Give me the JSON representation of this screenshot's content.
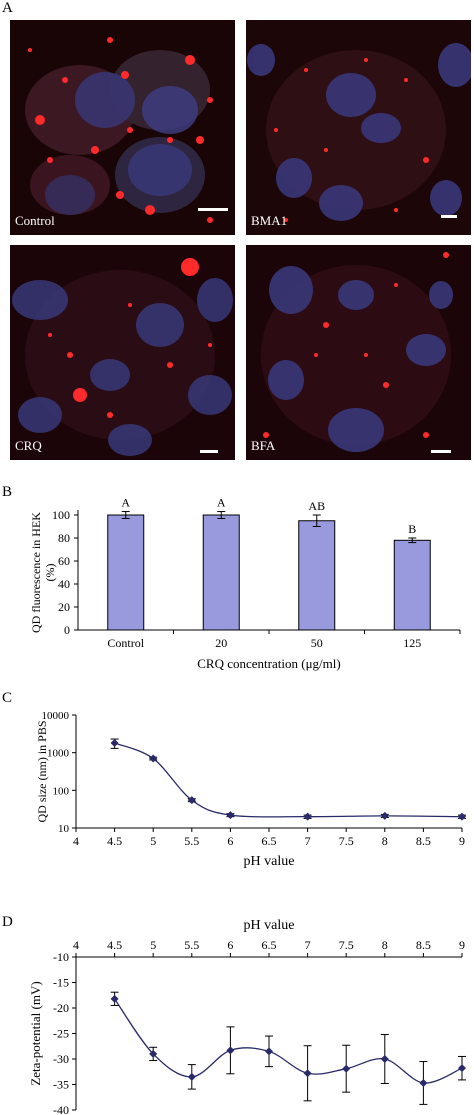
{
  "panels": {
    "a": "A",
    "b": "B",
    "c": "C",
    "d": "D"
  },
  "micrographs": [
    {
      "label": "Control"
    },
    {
      "label": "BMA1"
    },
    {
      "label": "CRQ"
    },
    {
      "label": "BFA"
    }
  ],
  "chart_data": [
    {
      "type": "bar",
      "categories": [
        "Control",
        "20",
        "50",
        "125"
      ],
      "values": [
        100,
        100,
        95,
        78
      ],
      "errors": [
        3,
        3,
        5,
        2
      ],
      "letters": [
        "A",
        "A",
        "AB",
        "B"
      ],
      "xlabel": "CRQ concentration (μg/ml)",
      "ylabel": "QD fluorescence in HEK",
      "ylabel2": "(%)",
      "ylim": [
        0,
        100
      ],
      "yticks": [
        "0",
        "20",
        "40",
        "60",
        "80",
        "100"
      ],
      "bar_color": "#9999dd"
    },
    {
      "type": "line",
      "x": [
        4.5,
        5,
        5.5,
        6,
        7,
        8,
        9
      ],
      "y": [
        1800,
        700,
        55,
        22,
        20,
        21,
        20
      ],
      "errors": [
        [
          1300,
          2300
        ],
        [
          640,
          760
        ],
        [
          50,
          60
        ],
        [
          20,
          24
        ],
        [
          18,
          22
        ],
        [
          19,
          23
        ],
        [
          18,
          22
        ]
      ],
      "xlabel": "pH value",
      "ylabel": "QD size (nm) in PBS",
      "yscale": "log",
      "ylim": [
        10,
        10000
      ],
      "xticks": [
        "4",
        "4.5",
        "5",
        "5.5",
        "6",
        "6.5",
        "7",
        "7.5",
        "8",
        "8.5",
        "9"
      ],
      "yticks": [
        "10",
        "100",
        "1000",
        "10000"
      ]
    },
    {
      "type": "line",
      "x": [
        4.5,
        5,
        5.5,
        6,
        6.5,
        7,
        7.5,
        8,
        8.5,
        9
      ],
      "y": [
        -18.2,
        -29,
        -33.5,
        -28.3,
        -28.5,
        -32.8,
        -31.9,
        -30,
        -34.7,
        -31.8
      ],
      "errors": [
        1.3,
        1.3,
        2.4,
        4.6,
        3,
        5.4,
        4.6,
        4.8,
        4.2,
        2.3
      ],
      "xlabel": "pH value",
      "ylabel": "Zeta-potential (mV)",
      "ylim": [
        -40,
        -10
      ],
      "xticks": [
        "4",
        "4.5",
        "5",
        "5.5",
        "6",
        "6.5",
        "7",
        "7.5",
        "8",
        "8.5",
        "9"
      ],
      "yticks": [
        "-10",
        "-15",
        "-20",
        "-25",
        "-30",
        "-35",
        "-40"
      ]
    }
  ]
}
